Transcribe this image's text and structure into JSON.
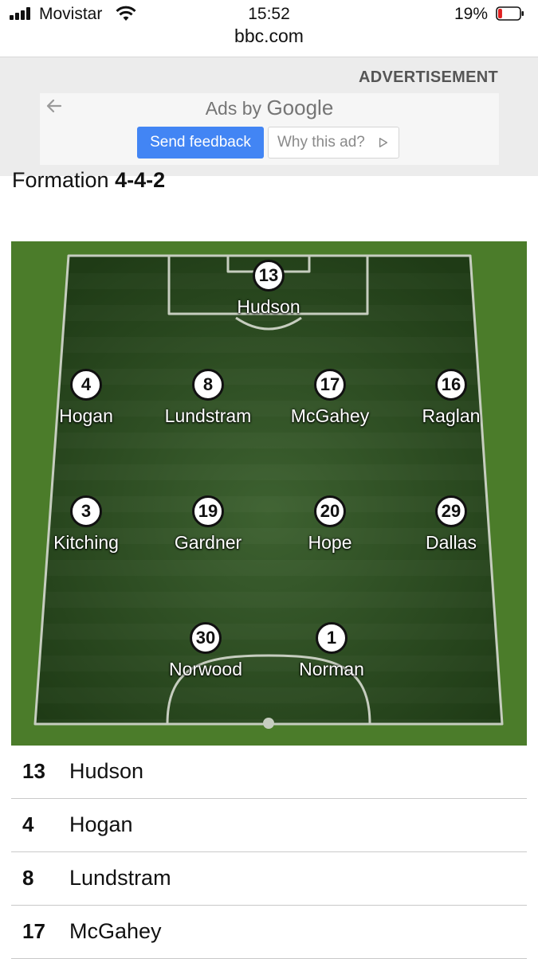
{
  "status_bar": {
    "carrier": "Movistar",
    "time": "15:52",
    "battery": "19%",
    "battery_level": 0.19,
    "signal_bars": 4
  },
  "browser": {
    "url": "bbc.com"
  },
  "ad": {
    "label": "ADVERTISEMENT",
    "ads_by": "Ads by",
    "ads_brand": "Google",
    "send_feedback": "Send feedback",
    "why_this_ad": "Why this ad?"
  },
  "formation": {
    "label": "Formation",
    "value": "4-4-2"
  },
  "pitch": {
    "players": [
      {
        "number": "13",
        "name": "Hudson"
      },
      {
        "number": "4",
        "name": "Hogan"
      },
      {
        "number": "8",
        "name": "Lundstram"
      },
      {
        "number": "17",
        "name": "McGahey"
      },
      {
        "number": "16",
        "name": "Raglan"
      },
      {
        "number": "3",
        "name": "Kitching"
      },
      {
        "number": "19",
        "name": "Gardner"
      },
      {
        "number": "20",
        "name": "Hope"
      },
      {
        "number": "29",
        "name": "Dallas"
      },
      {
        "number": "30",
        "name": "Norwood"
      },
      {
        "number": "1",
        "name": "Norman"
      }
    ]
  },
  "lineup": [
    {
      "number": "13",
      "name": "Hudson"
    },
    {
      "number": "4",
      "name": "Hogan"
    },
    {
      "number": "8",
      "name": "Lundstram"
    },
    {
      "number": "17",
      "name": "McGahey"
    }
  ],
  "colors": {
    "pitch_border": "#4b7c2a",
    "pitch_dark": "#24421a",
    "feedback_button": "#4285f4",
    "battery_low": "#e02020"
  }
}
